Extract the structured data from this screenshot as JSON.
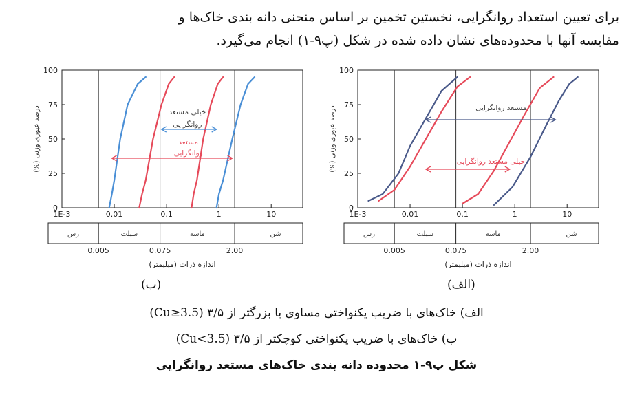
{
  "paragraph": {
    "line1": "برای تعیین استعداد روانگرایی، نخستین تخمین بر اساس منحنی دانه بندی خاک‌ها و",
    "line2": "مقایسه آنها با محدوده‌های نشان داده شده در شکل (پ۹-۱) انجام می‌گیرد."
  },
  "figure": {
    "sub_a": "(الف)",
    "sub_b": "(ب)",
    "caption_a": "الف) خاک‌های با ضریب یکنواختی مساوی یا بزرگتر از ۳/۵ (Cu≥3.5)",
    "caption_b": "ب) خاک‌های با ضریب یکنواختی کوچکتر از ۳/۵ (Cu<3.5)",
    "title": "شکل پ۹-۱ محدوده دانه بندی خاک‌های مستعد روانگرایی"
  },
  "chart_data": [
    {
      "id": "b",
      "type": "line",
      "xlabel": "اندازه ذرات (میلیمتر)",
      "ylabel": "(%) درصد عبوری وزنی",
      "x_scale": "log",
      "xlim": [
        0.001,
        40
      ],
      "ylim": [
        0,
        100
      ],
      "x_ticks": [
        "1E-3",
        "0.01",
        "0.1",
        "1",
        "10"
      ],
      "y_ticks": [
        "0",
        "25",
        "50",
        "75",
        "100"
      ],
      "vertical_lines": [
        0.005,
        0.075,
        2.0
      ],
      "soil_classes": [
        "رس",
        "سیلت",
        "ماسه",
        "شن"
      ],
      "class_bounds": [
        "0.005",
        "0.075",
        "2.00"
      ],
      "series": [
        {
          "color": "#4a8fd6",
          "x": [
            0.008,
            0.009,
            0.01,
            0.013,
            0.018,
            0.028,
            0.04
          ],
          "y": [
            0,
            10,
            20,
            50,
            75,
            90,
            95
          ]
        },
        {
          "color": "#4a8fd6",
          "x": [
            0.9,
            1.0,
            1.2,
            1.8,
            2.6,
            3.6,
            4.8
          ],
          "y": [
            0,
            10,
            20,
            50,
            75,
            90,
            95
          ]
        },
        {
          "color": "#e64a5a",
          "x": [
            0.03,
            0.034,
            0.04,
            0.055,
            0.08,
            0.11,
            0.14
          ],
          "y": [
            0,
            10,
            20,
            50,
            75,
            90,
            95
          ]
        },
        {
          "color": "#e64a5a",
          "x": [
            0.3,
            0.33,
            0.38,
            0.5,
            0.7,
            0.95,
            1.2
          ],
          "y": [
            0,
            10,
            20,
            50,
            75,
            90,
            95
          ]
        }
      ],
      "annotations": [
        {
          "lines": [
            "خیلی مستعد",
            "روانگرایی"
          ],
          "color": "#444444",
          "x": 0.25,
          "y": [
            70,
            61
          ]
        },
        {
          "lines": [
            "مستعد",
            "روانگرایی"
          ],
          "color": "#e64a5a",
          "x": 0.26,
          "y": [
            48,
            40
          ]
        }
      ],
      "ranges": [
        {
          "color": "#4a8fd6",
          "x1": 0.08,
          "x2": 0.9,
          "y": 57
        },
        {
          "color": "#e64a5a",
          "x1": 0.009,
          "x2": 1.8,
          "y": 36
        }
      ]
    },
    {
      "id": "a",
      "type": "line",
      "xlabel": "اندازه ذرات (میلیمتر)",
      "ylabel": "(%) درصد عبوری وزنی",
      "x_scale": "log",
      "xlim": [
        0.001,
        40
      ],
      "ylim": [
        0,
        100
      ],
      "x_ticks": [
        "1E-3",
        "0.01",
        "0.1",
        "1",
        "10"
      ],
      "y_ticks": [
        "0",
        "25",
        "50",
        "75",
        "100"
      ],
      "vertical_lines": [
        0.005,
        0.075,
        2.0
      ],
      "soil_classes": [
        "رس",
        "سیلت",
        "ماسه",
        "شن"
      ],
      "class_bounds": [
        "0.005",
        "0.075",
        "2.00"
      ],
      "series": [
        {
          "color": "#4a5a8a",
          "x": [
            0.0016,
            0.003,
            0.006,
            0.01,
            0.02,
            0.04,
            0.08
          ],
          "y": [
            5,
            10,
            25,
            45,
            65,
            85,
            95
          ]
        },
        {
          "color": "#e64a5a",
          "x": [
            0.0025,
            0.005,
            0.01,
            0.02,
            0.04,
            0.08,
            0.14
          ],
          "y": [
            5,
            13,
            30,
            50,
            70,
            88,
            95
          ]
        },
        {
          "color": "#e64a5a",
          "x": [
            0.1,
            0.2,
            0.4,
            0.8,
            1.5,
            3.0,
            5.5
          ],
          "y": [
            3,
            10,
            27,
            48,
            67,
            87,
            95
          ]
        },
        {
          "color": "#4a5a8a",
          "x": [
            0.4,
            0.9,
            2.0,
            4.0,
            7.0,
            11.0,
            16.0
          ],
          "y": [
            2,
            15,
            37,
            60,
            78,
            90,
            95
          ]
        }
      ],
      "annotations": [
        {
          "lines": [
            "مستعد روانگرایی"
          ],
          "color": "#444444",
          "x": 0.55,
          "y": [
            73
          ]
        },
        {
          "lines": [
            "خیلی مستعد روانگرایی"
          ],
          "color": "#e64a5a",
          "x": 0.35,
          "y": [
            34
          ]
        }
      ],
      "ranges": [
        {
          "color": "#4a5a8a",
          "x1": 0.02,
          "x2": 6.0,
          "y": 64
        },
        {
          "color": "#e64a5a",
          "x1": 0.02,
          "x2": 0.8,
          "y": 28
        }
      ]
    }
  ]
}
